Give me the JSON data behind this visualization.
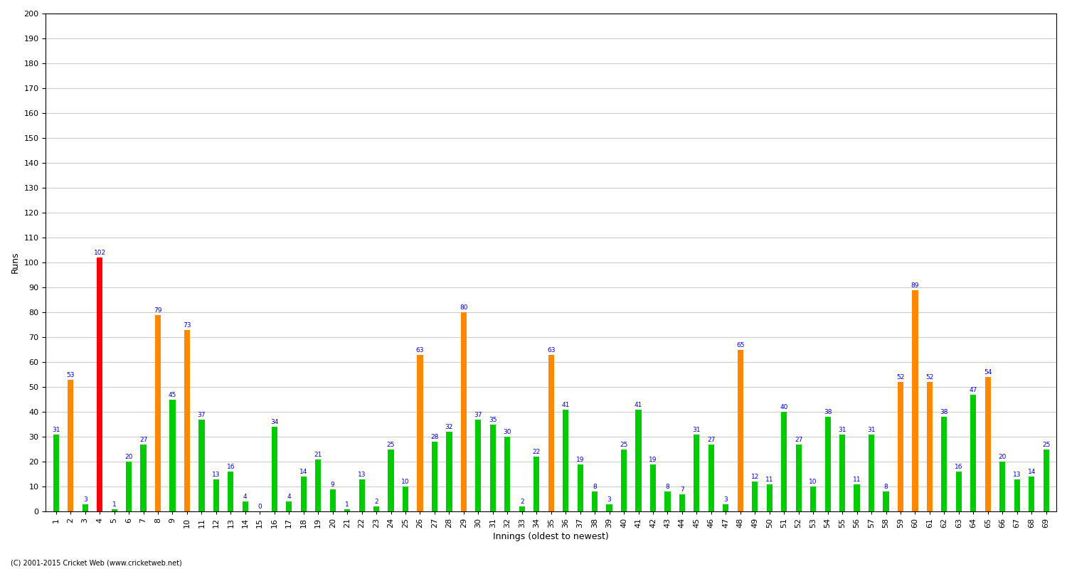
{
  "innings": [
    1,
    2,
    3,
    4,
    5,
    6,
    7,
    8,
    9,
    10,
    11,
    12,
    13,
    14,
    15,
    16,
    17,
    18,
    19,
    20,
    21,
    22,
    23,
    24,
    25,
    26,
    27,
    28,
    29,
    30,
    31,
    32,
    33,
    34,
    35,
    36,
    37,
    38,
    39,
    40,
    41,
    42,
    43,
    44,
    45,
    46,
    47,
    48,
    49,
    50,
    51,
    52,
    53,
    54,
    55,
    56,
    57,
    58,
    59,
    60,
    61,
    62,
    63,
    64,
    65,
    66,
    67,
    68,
    69
  ],
  "values": [
    31,
    53,
    3,
    102,
    1,
    20,
    27,
    79,
    45,
    73,
    37,
    13,
    16,
    4,
    0,
    34,
    4,
    14,
    21,
    9,
    1,
    13,
    2,
    25,
    10,
    63,
    28,
    32,
    80,
    37,
    35,
    30,
    2,
    22,
    63,
    41,
    19,
    8,
    3,
    25,
    41,
    19,
    8,
    7,
    31,
    27,
    3,
    65,
    12,
    11,
    40,
    27,
    10,
    38,
    31,
    11,
    31,
    8,
    52,
    89,
    52,
    38,
    16,
    47,
    54,
    20,
    13,
    14,
    25
  ],
  "colors": [
    "#00cc00",
    "#ff8800",
    "#00cc00",
    "#ff0000",
    "#00cc00",
    "#00cc00",
    "#00cc00",
    "#ff8800",
    "#00cc00",
    "#ff8800",
    "#00cc00",
    "#00cc00",
    "#00cc00",
    "#00cc00",
    "#00cc00",
    "#00cc00",
    "#00cc00",
    "#00cc00",
    "#00cc00",
    "#00cc00",
    "#00cc00",
    "#00cc00",
    "#00cc00",
    "#00cc00",
    "#00cc00",
    "#ff8800",
    "#00cc00",
    "#00cc00",
    "#ff8800",
    "#00cc00",
    "#00cc00",
    "#00cc00",
    "#00cc00",
    "#00cc00",
    "#ff8800",
    "#00cc00",
    "#00cc00",
    "#00cc00",
    "#00cc00",
    "#00cc00",
    "#00cc00",
    "#00cc00",
    "#00cc00",
    "#00cc00",
    "#00cc00",
    "#00cc00",
    "#00cc00",
    "#ff8800",
    "#00cc00",
    "#00cc00",
    "#00cc00",
    "#00cc00",
    "#00cc00",
    "#00cc00",
    "#00cc00",
    "#00cc00",
    "#00cc00",
    "#00cc00",
    "#ff8800",
    "#ff8800",
    "#ff8800",
    "#00cc00",
    "#00cc00",
    "#00cc00",
    "#ff8800",
    "#00cc00",
    "#00cc00",
    "#00cc00",
    "#00cc00"
  ],
  "ylabel": "Runs",
  "xlabel": "Innings (oldest to newest)",
  "ylim": [
    0,
    200
  ],
  "yticks": [
    0,
    10,
    20,
    30,
    40,
    50,
    60,
    70,
    80,
    90,
    100,
    110,
    120,
    130,
    140,
    150,
    160,
    170,
    180,
    190,
    200
  ],
  "background_color": "#ffffff",
  "grid_color": "#cccccc",
  "bar_label_color": "#0000cc",
  "bar_label_fontsize": 6.5,
  "axis_label_fontsize": 9,
  "tick_fontsize": 8,
  "footer": "(C) 2001-2015 Cricket Web (www.cricketweb.net)",
  "bar_width": 0.4
}
